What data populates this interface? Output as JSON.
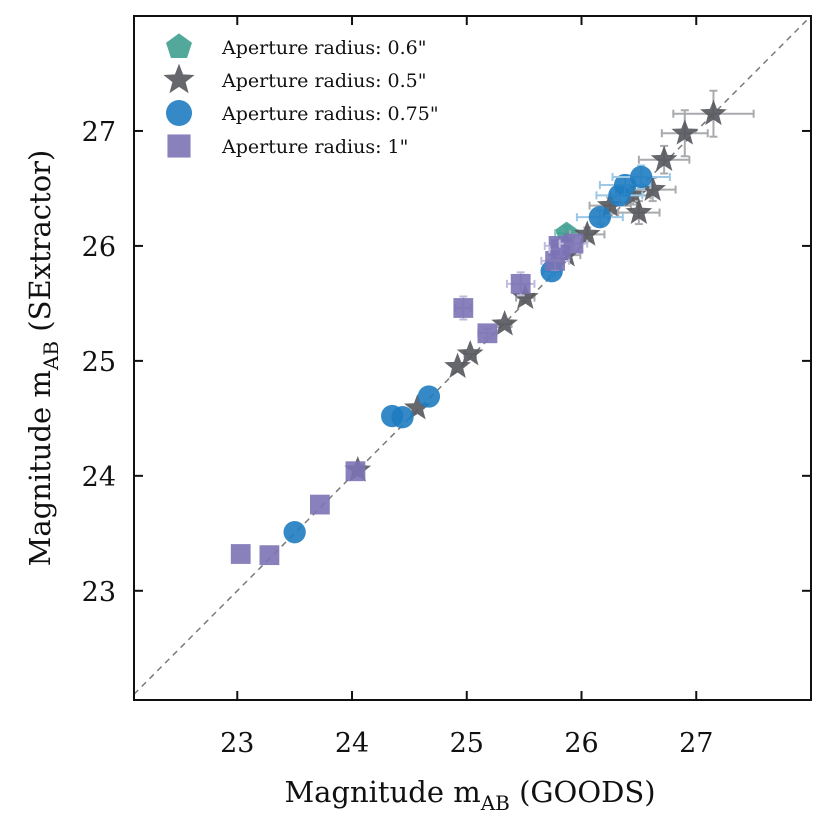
{
  "chart_data": {
    "type": "scatter",
    "title": "",
    "xlabel": {
      "main": "Magnitude m",
      "sub": "AB",
      "suffix": " (GOODS)"
    },
    "ylabel": {
      "main": "Magnitude m",
      "sub": "AB",
      "suffix": " (SExtractor)"
    },
    "xlim": [
      22.1,
      28.0
    ],
    "ylim": [
      22.05,
      28.0
    ],
    "xticks": [
      23,
      24,
      25,
      26,
      27
    ],
    "yticks": [
      23,
      24,
      25,
      26,
      27
    ],
    "grid": false,
    "reference_line": "y = x (dashed)",
    "legend_position": "top-left",
    "series": [
      {
        "name": "Aperture radius: 0.6\"",
        "marker": "pentagon",
        "color": "#3f9f8f",
        "errbar_color": "#8fc7bd",
        "points": [
          {
            "x": 25.87,
            "y": 26.11,
            "xerr": 0.1,
            "yerr": 0.06
          }
        ]
      },
      {
        "name": "Aperture radius: 0.5\"",
        "marker": "star",
        "color": "#55575c",
        "errbar_color": "#a8aaad",
        "points": [
          {
            "x": 24.05,
            "y": 24.05,
            "xerr": 0.0,
            "yerr": 0.0
          },
          {
            "x": 24.57,
            "y": 24.59,
            "xerr": 0.0,
            "yerr": 0.0
          },
          {
            "x": 24.92,
            "y": 24.95,
            "xerr": 0.0,
            "yerr": 0.0
          },
          {
            "x": 25.03,
            "y": 25.06,
            "xerr": 0.05,
            "yerr": 0.0
          },
          {
            "x": 25.33,
            "y": 25.32,
            "xerr": 0.06,
            "yerr": 0.0
          },
          {
            "x": 25.51,
            "y": 25.55,
            "xerr": 0.08,
            "yerr": 0.03
          },
          {
            "x": 25.87,
            "y": 25.92,
            "xerr": 0.12,
            "yerr": 0.05
          },
          {
            "x": 26.05,
            "y": 26.1,
            "xerr": 0.15,
            "yerr": 0.06
          },
          {
            "x": 26.25,
            "y": 26.35,
            "xerr": 0.18,
            "yerr": 0.07
          },
          {
            "x": 26.45,
            "y": 26.44,
            "xerr": 0.15,
            "yerr": 0.08
          },
          {
            "x": 26.5,
            "y": 26.29,
            "xerr": 0.18,
            "yerr": 0.1
          },
          {
            "x": 26.62,
            "y": 26.49,
            "xerr": 0.2,
            "yerr": 0.1
          },
          {
            "x": 26.72,
            "y": 26.75,
            "xerr": 0.22,
            "yerr": 0.12
          },
          {
            "x": 26.9,
            "y": 26.98,
            "xerr": 0.2,
            "yerr": 0.2
          },
          {
            "x": 27.15,
            "y": 27.15,
            "xerr": 0.35,
            "yerr": 0.2
          }
        ]
      },
      {
        "name": "Aperture radius: 0.75\"",
        "marker": "circle",
        "color": "#1f7cc1",
        "errbar_color": "#9cc8e6",
        "points": [
          {
            "x": 23.5,
            "y": 23.51,
            "xerr": 0.0,
            "yerr": 0.0
          },
          {
            "x": 24.35,
            "y": 24.52,
            "xerr": 0.0,
            "yerr": 0.0
          },
          {
            "x": 24.44,
            "y": 24.51,
            "xerr": 0.0,
            "yerr": 0.0
          },
          {
            "x": 24.67,
            "y": 24.69,
            "xerr": 0.0,
            "yerr": 0.0
          },
          {
            "x": 25.74,
            "y": 25.78,
            "xerr": 0.08,
            "yerr": 0.04
          },
          {
            "x": 26.16,
            "y": 26.25,
            "xerr": 0.2,
            "yerr": 0.06
          },
          {
            "x": 26.33,
            "y": 26.44,
            "xerr": 0.2,
            "yerr": 0.08
          },
          {
            "x": 26.38,
            "y": 26.53,
            "xerr": 0.22,
            "yerr": 0.08
          },
          {
            "x": 26.52,
            "y": 26.6,
            "xerr": 0.25,
            "yerr": 0.1
          }
        ]
      },
      {
        "name": "Aperture radius: 1\"",
        "marker": "square",
        "color": "#7b73b5",
        "errbar_color": "#c0bbdc",
        "points": [
          {
            "x": 23.03,
            "y": 23.32,
            "xerr": 0.0,
            "yerr": 0.0
          },
          {
            "x": 23.28,
            "y": 23.31,
            "xerr": 0.0,
            "yerr": 0.0
          },
          {
            "x": 23.72,
            "y": 23.75,
            "xerr": 0.0,
            "yerr": 0.0
          },
          {
            "x": 24.03,
            "y": 24.04,
            "xerr": 0.0,
            "yerr": 0.0
          },
          {
            "x": 24.97,
            "y": 25.46,
            "xerr": 0.07,
            "yerr": 0.1
          },
          {
            "x": 25.18,
            "y": 25.24,
            "xerr": 0.08,
            "yerr": 0.04
          },
          {
            "x": 25.47,
            "y": 25.67,
            "xerr": 0.12,
            "yerr": 0.1
          },
          {
            "x": 25.77,
            "y": 25.87,
            "xerr": 0.12,
            "yerr": 0.08
          },
          {
            "x": 25.8,
            "y": 26.0,
            "xerr": 0.12,
            "yerr": 0.06
          },
          {
            "x": 25.82,
            "y": 25.97,
            "xerr": 0.1,
            "yerr": 0.06
          },
          {
            "x": 25.93,
            "y": 26.02,
            "xerr": 0.12,
            "yerr": 0.07
          }
        ]
      }
    ]
  }
}
